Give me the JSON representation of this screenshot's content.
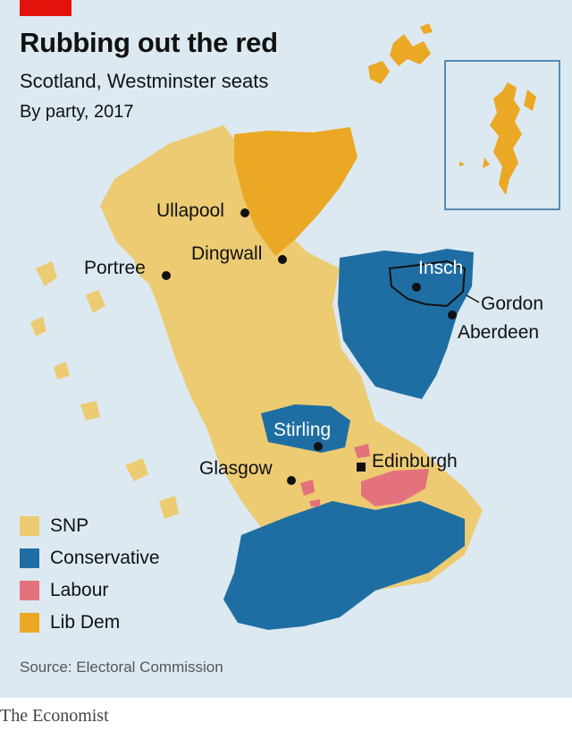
{
  "header": {
    "title": "Rubbing out the red",
    "subtitle": "Scotland, Westminster seats",
    "subtitle2": "By party, 2017"
  },
  "colors": {
    "snp": "#eccb73",
    "conservative": "#1f6ea3",
    "labour": "#e4727c",
    "libdem": "#eba824",
    "background": "#dce9f1",
    "accent": "#e3120b"
  },
  "legend": [
    {
      "label": "SNP",
      "color": "#eccb73"
    },
    {
      "label": "Conservative",
      "color": "#1f6ea3"
    },
    {
      "label": "Labour",
      "color": "#e4727c"
    },
    {
      "label": "Lib Dem",
      "color": "#eba824"
    }
  ],
  "places": {
    "ullapool": "Ullapool",
    "dingwall": "Dingwall",
    "portree": "Portree",
    "insch": "Insch",
    "gordon": "Gordon",
    "aberdeen": "Aberdeen",
    "stirling": "Stirling",
    "glasgow": "Glasgow",
    "edinburgh": "Edinburgh"
  },
  "source": "Source: Electoral Commission",
  "brand": "The Economist"
}
